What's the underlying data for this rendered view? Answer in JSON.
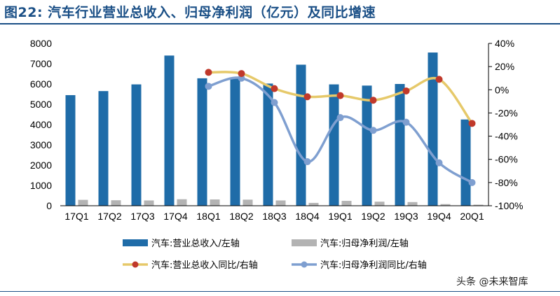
{
  "figure": {
    "title": "图22: 汽车行业营业总收入、归母净利润（亿元）及同比增速"
  },
  "watermark": "头条 @未来智库",
  "colors": {
    "title": "#1a4f86",
    "revenue_bar": "#1f6ca8",
    "profit_bar": "#b3b3b3",
    "revenue_yoy_line": "#e6c96a",
    "revenue_yoy_marker": "#c0392b",
    "profit_yoy_line": "#7f9fd0"
  },
  "chart_data": {
    "type": "bar",
    "categories": [
      "17Q1",
      "17Q2",
      "17Q3",
      "17Q4",
      "18Q1",
      "18Q2",
      "18Q3",
      "18Q4",
      "19Q1",
      "19Q2",
      "19Q3",
      "19Q4",
      "20Q1"
    ],
    "left_axis": {
      "ylim": [
        0,
        8000
      ],
      "ticks": [
        "0",
        "1000",
        "2000",
        "3000",
        "4000",
        "5000",
        "6000",
        "7000",
        "8000"
      ]
    },
    "right_axis": {
      "ylim": [
        -100,
        40
      ],
      "ticks": [
        "-100%",
        "-80%",
        "-60%",
        "-40%",
        "-20%",
        "0%",
        "20%",
        "40%"
      ]
    },
    "series": [
      {
        "name": "汽车:营业总收入/左轴",
        "kind": "bar",
        "axis": "left",
        "values": [
          5450,
          5650,
          5980,
          7400,
          6280,
          6300,
          6020,
          6950,
          5980,
          5920,
          6000,
          7550,
          4250
        ]
      },
      {
        "name": "汽车:归母净利润/左轴",
        "kind": "bar",
        "axis": "left",
        "values": [
          290,
          270,
          260,
          320,
          310,
          300,
          260,
          140,
          240,
          200,
          180,
          80,
          50
        ]
      },
      {
        "name": "汽车:营业总收入同比/右轴",
        "kind": "line",
        "axis": "right",
        "values": [
          null,
          null,
          null,
          null,
          15,
          14,
          1,
          -6,
          -5,
          -9,
          -1,
          9,
          -29
        ]
      },
      {
        "name": "汽车:归母净利润同比/右轴",
        "kind": "line",
        "axis": "right",
        "values": [
          null,
          null,
          null,
          null,
          3,
          10,
          -11,
          -62,
          -24,
          -35,
          -28,
          -63,
          -80
        ]
      }
    ]
  }
}
